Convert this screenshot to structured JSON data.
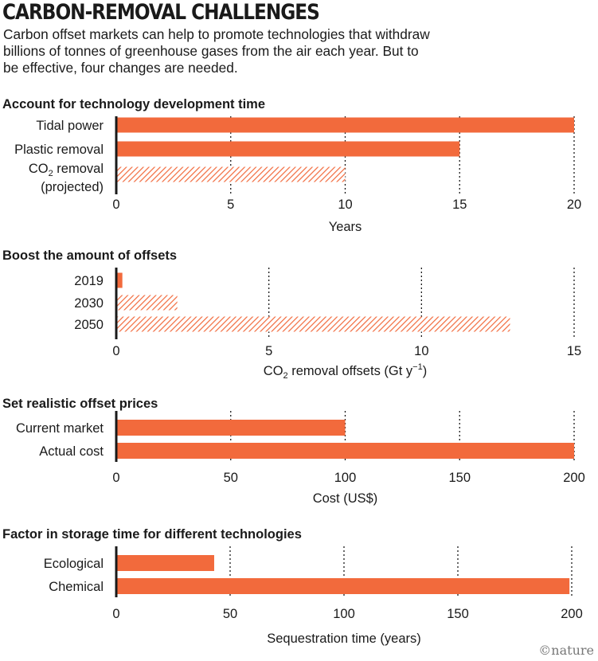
{
  "title": "CARBON-REMOVAL CHALLENGES",
  "subtitle": "Carbon offset markets can help to promote technologies that withdraw billions of tonnes of greenhouse gases from the air each year. But to be effective, four changes are needed.",
  "brand": "©nature",
  "colors": {
    "bar": "#f26a3c",
    "hatch": "#f26a3c",
    "axis": "#1a1a1a"
  },
  "chart_data": [
    {
      "type": "bar",
      "orientation": "horizontal",
      "title": "Account for technology development time",
      "xlabel": "Years",
      "xlim": [
        0,
        20
      ],
      "xticks": [
        0,
        5,
        10,
        15,
        20
      ],
      "categories": [
        {
          "label": "Tidal power",
          "label2": "",
          "value": 20,
          "style": "solid"
        },
        {
          "label": "Plastic removal",
          "label2": "",
          "value": 15,
          "style": "solid"
        },
        {
          "label": "CO",
          "sub": "2",
          "label_rest": " removal",
          "label2": "(projected)",
          "value": 10,
          "style": "hatched"
        }
      ]
    },
    {
      "type": "bar",
      "orientation": "horizontal",
      "title": "Boost the amount of offsets",
      "xlabel_parts": {
        "pre": "CO",
        "sub": "2",
        "mid": " removal offsets (Gt y",
        "sup": "−1",
        "post": ")"
      },
      "xlim": [
        0,
        15
      ],
      "xticks": [
        0,
        5,
        10,
        15
      ],
      "categories": [
        {
          "label": "2019",
          "value": 0.2,
          "style": "solid"
        },
        {
          "label": "2030",
          "value": 2,
          "style": "hatched"
        },
        {
          "label": "2050",
          "value": 12.9,
          "style": "hatched"
        }
      ]
    },
    {
      "type": "bar",
      "orientation": "horizontal",
      "title": "Set realistic offset prices",
      "xlabel": "Cost (US$)",
      "xlim": [
        0,
        200
      ],
      "xticks": [
        0,
        50,
        100,
        150,
        200
      ],
      "categories": [
        {
          "label": "Current market",
          "value": 100,
          "style": "solid"
        },
        {
          "label": "Actual cost",
          "value": 200,
          "style": "solid"
        }
      ]
    },
    {
      "type": "bar",
      "orientation": "horizontal",
      "title": "Factor in storage time for different technologies",
      "xlabel": "Sequestration time (years)",
      "xlim": [
        0,
        200
      ],
      "xticks": [
        0,
        50,
        100,
        150,
        200
      ],
      "categories": [
        {
          "label": "Ecological",
          "value": 43,
          "style": "solid"
        },
        {
          "label": "Chemical",
          "value": 199,
          "style": "solid"
        }
      ]
    }
  ]
}
